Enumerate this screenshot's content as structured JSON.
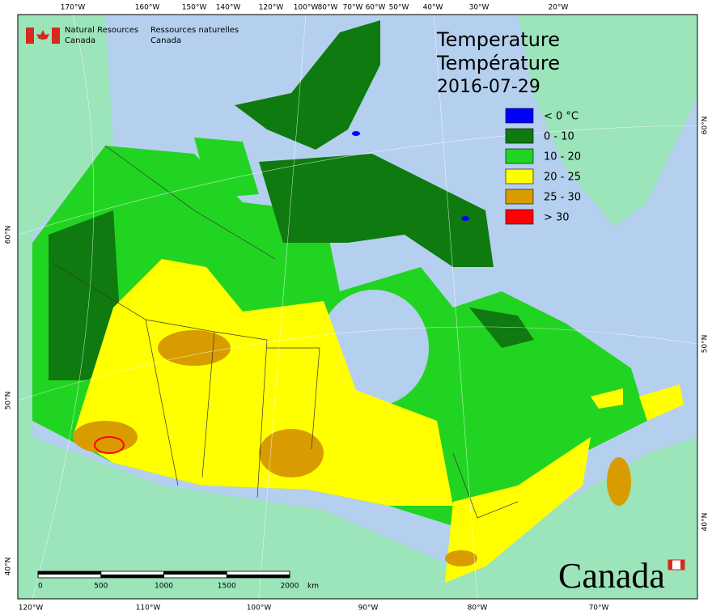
{
  "agency": {
    "english": [
      "Natural Resources",
      "Canada"
    ],
    "french": [
      "Ressources naturelles",
      "Canada"
    ]
  },
  "title": {
    "lines": [
      "Temperature",
      "Température"
    ],
    "date": "2016-07-29"
  },
  "legend": [
    {
      "label": "< 0 °C",
      "color": "#0000ff"
    },
    {
      "label": "0 - 10",
      "color": "#0f7a0f"
    },
    {
      "label": "10 - 20",
      "color": "#22d422"
    },
    {
      "label": "20 - 25",
      "color": "#ffff00"
    },
    {
      "label": "25 - 30",
      "color": "#d89c00"
    },
    {
      "label": "> 30",
      "color": "#ff0000"
    }
  ],
  "scale_bar": {
    "ticks": [
      0,
      500,
      1000,
      1500,
      2000
    ],
    "unit": "km"
  },
  "graticule": {
    "top": [
      "170°W",
      "160°W",
      "150°W",
      "140°W",
      "120°W",
      "100°W",
      "80°W",
      "70°W",
      "60°W",
      "50°W",
      "40°W",
      "30°W",
      "20°W"
    ],
    "bottom": [
      "120°W",
      "110°W",
      "100°W",
      "90°W",
      "80°W",
      "70°W"
    ],
    "left": [
      "60°N",
      "50°N",
      "40°N"
    ],
    "right": [
      "60°N",
      "50°N",
      "40°N"
    ]
  },
  "wordmark": "Canada"
}
